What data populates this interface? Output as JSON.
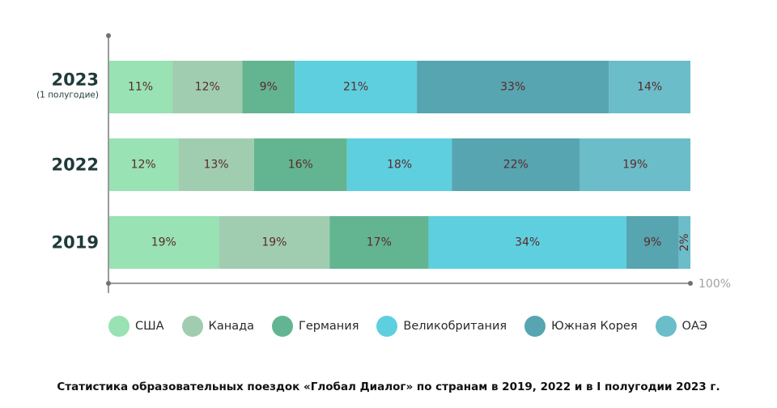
{
  "chart_data": {
    "type": "bar",
    "orientation": "horizontal",
    "stacked": true,
    "normalized": true,
    "title": "Статистика образовательных поездок «Глобал Диалог» по странам в 2019, 2022 и в I полугодии 2023 г.",
    "xlabel": "",
    "ylabel": "",
    "xlim": [
      0,
      100
    ],
    "axis_end_label": "100%",
    "grid": false,
    "legend_position": "bottom",
    "categories": [
      {
        "year": "2023",
        "sub": "(1 полугодие)"
      },
      {
        "year": "2022",
        "sub": ""
      },
      {
        "year": "2019",
        "sub": ""
      }
    ],
    "series": [
      {
        "name": "США",
        "color": "#98e2b3",
        "values": [
          11,
          12,
          19
        ]
      },
      {
        "name": "Канада",
        "color": "#a0cdb0",
        "values": [
          12,
          13,
          19
        ]
      },
      {
        "name": "Германия",
        "color": "#63b591",
        "values": [
          9,
          16,
          17
        ]
      },
      {
        "name": "Великобритания",
        "color": "#5ecfdf",
        "values": [
          21,
          18,
          34
        ]
      },
      {
        "name": "Южная Корея",
        "color": "#56a5b0",
        "values": [
          33,
          22,
          9
        ]
      },
      {
        "name": "ОАЭ",
        "color": "#6bbdc9",
        "values": [
          14,
          19,
          2
        ]
      }
    ],
    "value_suffix": "%"
  },
  "caption": "Статистика образовательных поездок «Глобал Диалог» по странам в 2019, 2022 и в I полугодии 2023 г."
}
